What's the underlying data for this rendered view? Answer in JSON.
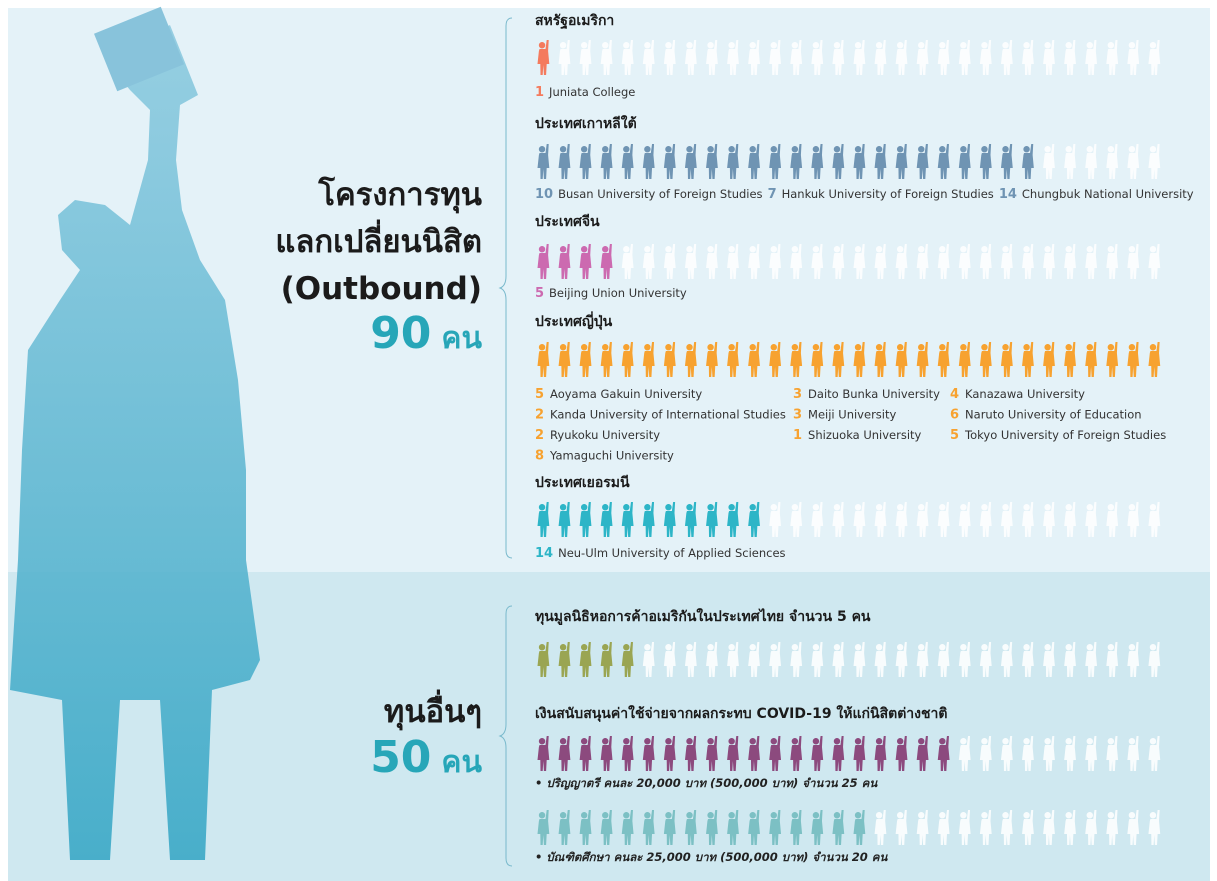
{
  "outbound": {
    "title_lines": [
      "โครงการทุน",
      "แลกเปลี่ยนนิสิต",
      "(Outbound)"
    ],
    "total": 90,
    "unit": "คน"
  },
  "countries": [
    {
      "name": "สหรัฐอเมริกา",
      "color": "#f47b5e",
      "icons": {
        "filled": 1,
        "total": 30
      },
      "universities": [
        {
          "count": 1,
          "name": "Juniata College"
        }
      ]
    },
    {
      "name": "ประเทศเกาหลีใต้",
      "color": "#6f94b3",
      "icons": {
        "filled": 24,
        "total": 30
      },
      "universities": [
        {
          "count": 10,
          "name": "Busan University of Foreign Studies"
        },
        {
          "count": 7,
          "name": "Hankuk University of Foreign Studies"
        },
        {
          "count": 14,
          "name": "Chungbuk National University"
        }
      ]
    },
    {
      "name": "ประเทศจีน",
      "color": "#cc6ab0",
      "icons": {
        "filled": 4,
        "total": 30
      },
      "universities": [
        {
          "count": 5,
          "name": "Beijing Union University"
        }
      ]
    },
    {
      "name": "ประเทศญี่ปุ่น",
      "color": "#f7a230",
      "icons": {
        "filled": 30,
        "total": 30
      },
      "columns": 3,
      "universities": [
        {
          "count": 5,
          "name": "Aoyama Gakuin University"
        },
        {
          "count": 3,
          "name": "Daito Bunka University"
        },
        {
          "count": 4,
          "name": "Kanazawa University"
        },
        {
          "count": 2,
          "name": "Kanda University of International Studies"
        },
        {
          "count": 3,
          "name": "Meiji University"
        },
        {
          "count": 6,
          "name": "Naruto University of Education"
        },
        {
          "count": 2,
          "name": "Ryukoku University"
        },
        {
          "count": 1,
          "name": "Shizuoka University"
        },
        {
          "count": 5,
          "name": "Tokyo University of Foreign Studies"
        },
        {
          "count": 8,
          "name": "Yamaguchi University"
        }
      ]
    },
    {
      "name": "ประเทศเยอรมนี",
      "color": "#2db5c7",
      "icons": {
        "filled": 11,
        "total": 30
      },
      "universities": [
        {
          "count": 14,
          "name": "Neu-Ulm University of Applied Sciences"
        }
      ]
    }
  ],
  "other": {
    "title": "ทุนอื่นๆ",
    "total": 50,
    "unit": "คน"
  },
  "scholarships": [
    {
      "title": "ทุนมูลนิธิหอการค้าอเมริกันในประเทศไทย จำนวน 5 คน",
      "groups": [
        {
          "color": "#9aa552",
          "icons": {
            "filled": 5,
            "total": 30
          }
        }
      ]
    },
    {
      "title": "เงินสนับสนุนค่าใช้จ่ายจากผลกระทบ COVID-19 ให้แก่นิสิตต่างชาติ",
      "groups": [
        {
          "color": "#8c4a7e",
          "icons": {
            "filled": 20,
            "total": 30
          },
          "note": "• ปริญญาตรี คนละ 20,000 บาท (500,000 บาท) จำนวน 25 คน"
        },
        {
          "color": "#7cc0c4",
          "icons": {
            "filled": 16,
            "total": 30
          },
          "note": "• บัณฑิตศึกษา คนละ 25,000 บาท (500,000 บาท) จำนวน 20 คน"
        }
      ]
    }
  ]
}
